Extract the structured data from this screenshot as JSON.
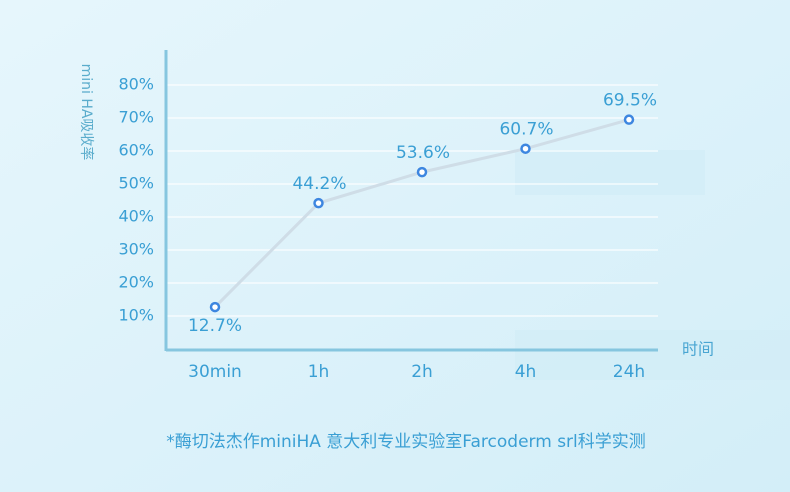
{
  "chart_data": {
    "type": "line",
    "y_label": "mini HA吸收率",
    "x_label": "时间",
    "footnote": "*酶切法杰作miniHA  意大利专业实验室Farcoderm srl科学实测",
    "categories": [
      "30min",
      "1h",
      "2h",
      "4h",
      "24h"
    ],
    "values": [
      12.7,
      44.2,
      53.6,
      60.7,
      69.5
    ],
    "value_labels": [
      "12.7%",
      "44.2%",
      "53.6%",
      "60.7%",
      "69.5%"
    ],
    "color": "#3d86e0",
    "ylim": [
      0,
      90
    ],
    "yticks": [
      {
        "value": 10,
        "label": "10%"
      },
      {
        "value": 20,
        "label": "20%"
      },
      {
        "value": 30,
        "label": "30%"
      },
      {
        "value": 40,
        "label": "40%"
      },
      {
        "value": 50,
        "label": "50%"
      },
      {
        "value": 60,
        "label": "60%"
      },
      {
        "value": 70,
        "label": "70%"
      },
      {
        "value": 80,
        "label": "80%"
      }
    ],
    "grid": true
  }
}
